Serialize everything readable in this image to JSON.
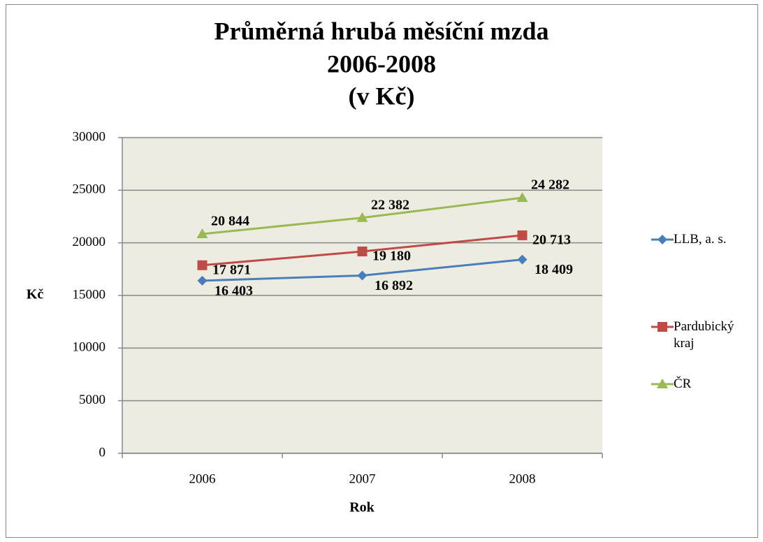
{
  "chart_data": {
    "type": "line",
    "title": [
      "Průměrná hrubá měsíční mzda",
      "2006-2008",
      "(v Kč)"
    ],
    "x_label": "Rok",
    "y_label": "Kč",
    "categories": [
      "2006",
      "2007",
      "2008"
    ],
    "ylim": [
      0,
      30000
    ],
    "yticks": [
      0,
      5000,
      10000,
      15000,
      20000,
      25000,
      30000
    ],
    "grid": true,
    "legend": "right",
    "series": [
      {
        "name": "LLB, a. s.",
        "color": "#4a7ebb",
        "marker": "diamond",
        "values": [
          16403,
          16892,
          18409
        ],
        "value_labels": [
          "16 403",
          "16 892",
          "18 409"
        ]
      },
      {
        "name": "Pardubický kraj",
        "color": "#be4b48",
        "marker": "square",
        "values": [
          17871,
          19180,
          20713
        ],
        "value_labels": [
          "17 871",
          "19 180",
          "20 713"
        ]
      },
      {
        "name": "ČR",
        "color": "#98b954",
        "marker": "triangle",
        "values": [
          20844,
          22382,
          24282
        ],
        "value_labels": [
          "20 844",
          "22 382",
          "24 282"
        ]
      }
    ]
  }
}
